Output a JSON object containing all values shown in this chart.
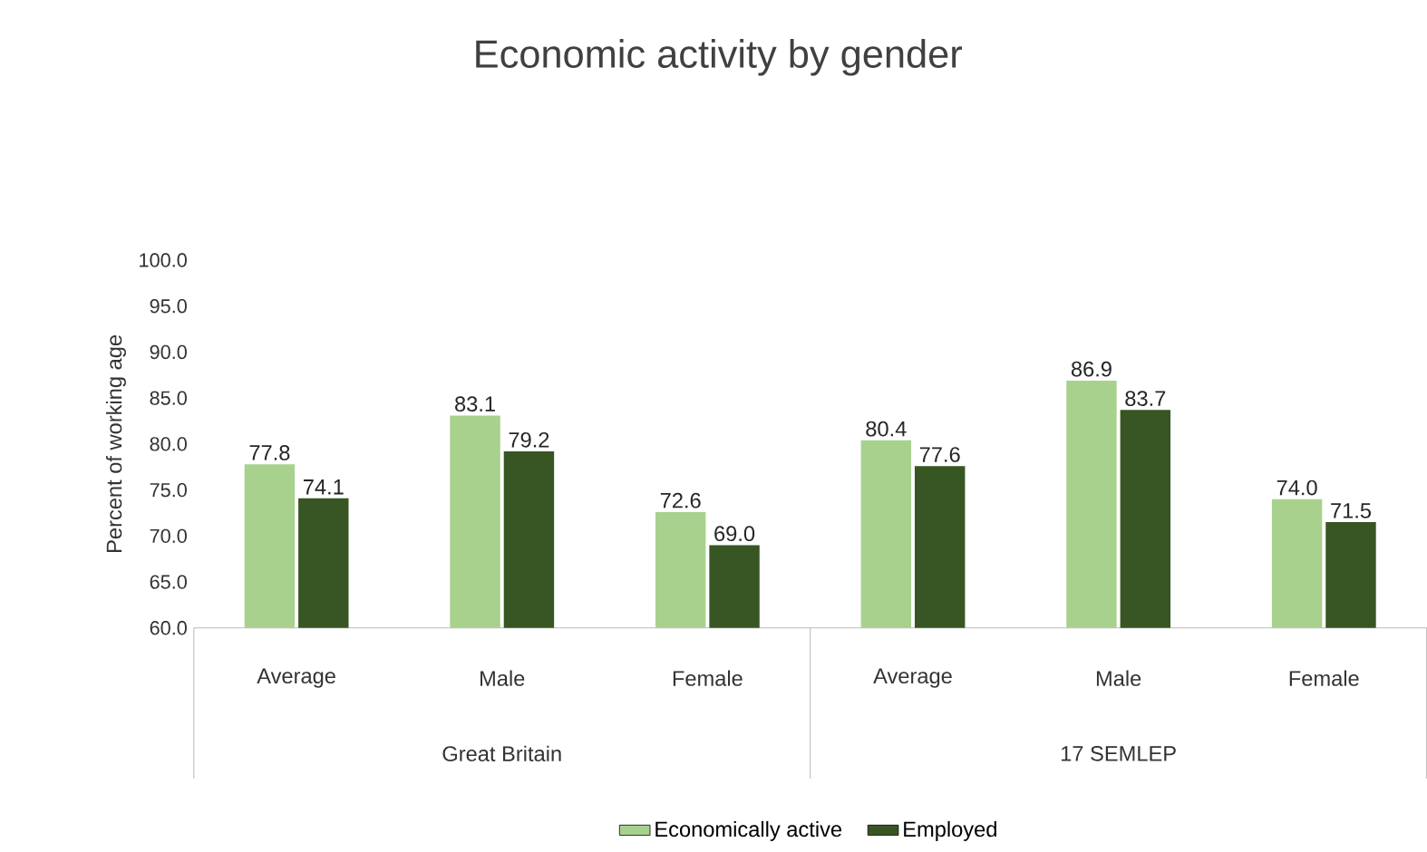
{
  "chart_data": {
    "type": "bar",
    "title": "Economic activity by gender",
    "ylabel": "Percent of working age",
    "categories": [
      "Average",
      "Male",
      "Female",
      "Average",
      "Male",
      "Female"
    ],
    "annotations": [
      "Great Britain",
      "17 SEMLEP"
    ],
    "series": [
      {
        "name": "Economically active",
        "color": "#a9d18e",
        "values": [
          77.8,
          83.1,
          72.6,
          80.4,
          86.9,
          74.0
        ],
        "value_labels": [
          "77.8",
          "83.1",
          "72.6",
          "80.4",
          "86.9",
          "74.0"
        ]
      },
      {
        "name": "Employed",
        "color": "#375623",
        "values": [
          74.1,
          79.2,
          69.0,
          77.6,
          83.7,
          71.5
        ],
        "value_labels": [
          "74.1",
          "79.2",
          "69.0",
          "77.6",
          "83.7",
          "71.5"
        ]
      }
    ],
    "ylim": [
      60,
      100
    ],
    "yticks": [
      {
        "value": 60,
        "label": "60.0"
      },
      {
        "value": 65,
        "label": "65.0"
      },
      {
        "value": 70,
        "label": "70.0"
      },
      {
        "value": 75,
        "label": "75.0"
      },
      {
        "value": 80,
        "label": "80.0"
      },
      {
        "value": 85,
        "label": "85.0"
      },
      {
        "value": 90,
        "label": "90.0"
      },
      {
        "value": 95,
        "label": "95.0"
      },
      {
        "value": 100,
        "label": "100.0"
      }
    ],
    "legend": "bottom"
  }
}
